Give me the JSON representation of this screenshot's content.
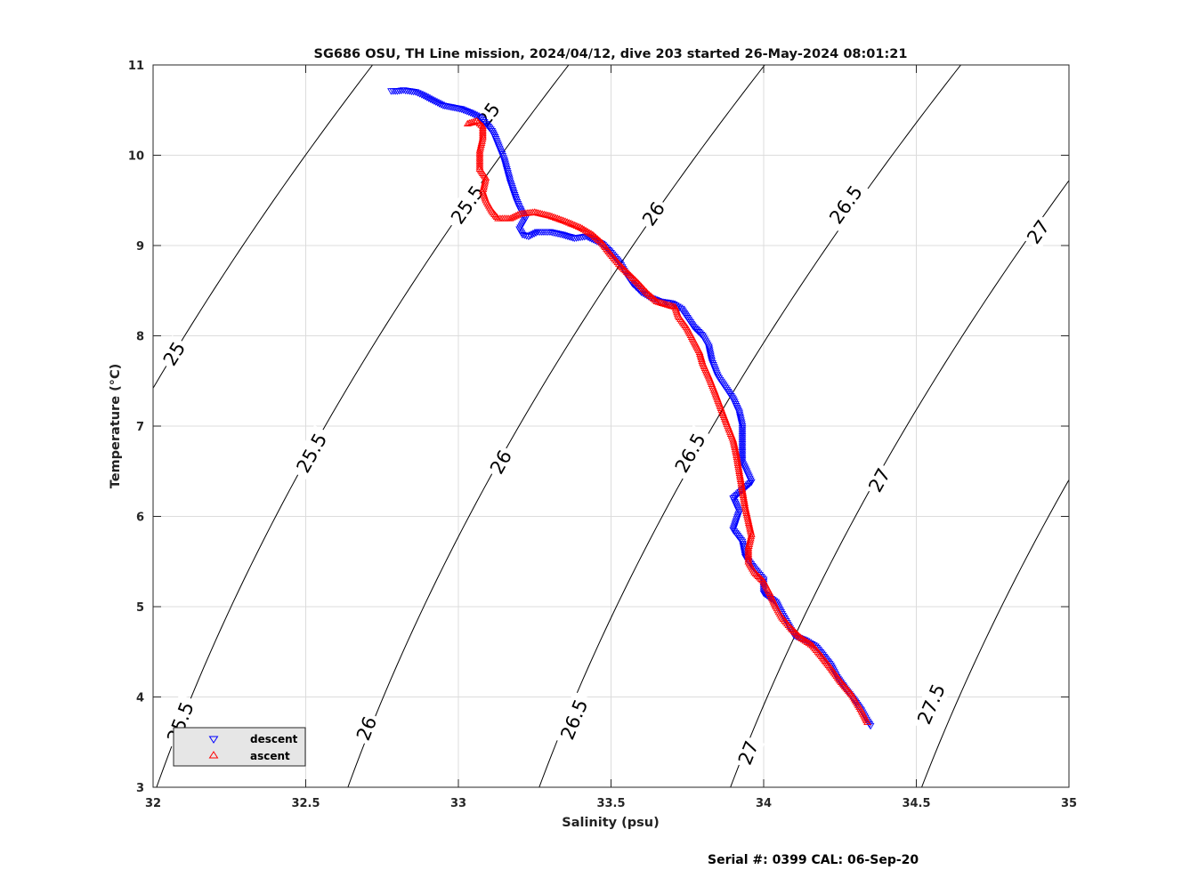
{
  "chart_data": {
    "type": "scatter",
    "title": "SG686 OSU, TH Line mission, 2024/04/12, dive 203 started 26-May-2024 08:01:21",
    "xlabel": "Salinity (psu)",
    "ylabel": "Temperature (°C)",
    "xlim": [
      32,
      35
    ],
    "ylim": [
      3,
      11
    ],
    "xticks": [
      "32",
      "32.5",
      "33",
      "33.5",
      "34",
      "34.5",
      "35"
    ],
    "yticks": [
      "3",
      "4",
      "5",
      "6",
      "7",
      "8",
      "9",
      "10",
      "11"
    ],
    "grid": true,
    "legend_position": "bottom-left",
    "density_contours": {
      "levels": [
        25,
        25.5,
        26,
        26.5,
        27,
        27.5
      ],
      "labels": [
        {
          "text": "25",
          "s": 33.1,
          "t": 10.45
        },
        {
          "text": "25",
          "s": 32.07,
          "t": 7.8
        },
        {
          "text": "25.5",
          "s": 33.03,
          "t": 9.45
        },
        {
          "text": "25.5",
          "s": 32.52,
          "t": 6.7
        },
        {
          "text": "25.5",
          "s": 32.09,
          "t": 3.72
        },
        {
          "text": "26",
          "s": 33.64,
          "t": 9.35
        },
        {
          "text": "26",
          "s": 33.14,
          "t": 6.6
        },
        {
          "text": "26",
          "s": 32.7,
          "t": 3.65
        },
        {
          "text": "26.5",
          "s": 34.27,
          "t": 9.45
        },
        {
          "text": "26.5",
          "s": 33.76,
          "t": 6.7
        },
        {
          "text": "26.5",
          "s": 33.38,
          "t": 3.75
        },
        {
          "text": "27",
          "s": 34.9,
          "t": 9.15
        },
        {
          "text": "27",
          "s": 34.38,
          "t": 6.4
        },
        {
          "text": "27",
          "s": 33.95,
          "t": 3.38
        },
        {
          "text": "27.5",
          "s": 34.55,
          "t": 3.92
        }
      ]
    },
    "series": [
      {
        "name": "descent",
        "marker": "triangle-down",
        "color": "#0000ff",
        "points": [
          [
            32.78,
            10.71
          ],
          [
            32.8,
            10.71
          ],
          [
            32.82,
            10.72
          ],
          [
            32.84,
            10.71
          ],
          [
            32.86,
            10.7
          ],
          [
            32.88,
            10.67
          ],
          [
            32.92,
            10.6
          ],
          [
            32.95,
            10.55
          ],
          [
            32.98,
            10.53
          ],
          [
            33.01,
            10.51
          ],
          [
            33.04,
            10.47
          ],
          [
            33.07,
            10.42
          ],
          [
            33.09,
            10.35
          ],
          [
            33.11,
            10.27
          ],
          [
            33.12,
            10.2
          ],
          [
            33.15,
            9.95
          ],
          [
            33.17,
            9.7
          ],
          [
            33.18,
            9.6
          ],
          [
            33.19,
            9.5
          ],
          [
            33.2,
            9.42
          ],
          [
            33.21,
            9.35
          ],
          [
            33.22,
            9.3
          ],
          [
            33.2,
            9.18
          ],
          [
            33.21,
            9.12
          ],
          [
            33.23,
            9.1
          ],
          [
            33.26,
            9.15
          ],
          [
            33.3,
            9.15
          ],
          [
            33.34,
            9.12
          ],
          [
            33.38,
            9.08
          ],
          [
            33.42,
            9.1
          ],
          [
            33.47,
            9.02
          ],
          [
            33.5,
            8.92
          ],
          [
            33.53,
            8.8
          ],
          [
            33.55,
            8.68
          ],
          [
            33.57,
            8.58
          ],
          [
            33.6,
            8.48
          ],
          [
            33.63,
            8.42
          ],
          [
            33.66,
            8.38
          ],
          [
            33.7,
            8.36
          ],
          [
            33.73,
            8.3
          ],
          [
            33.75,
            8.2
          ],
          [
            33.77,
            8.1
          ],
          [
            33.8,
            8.0
          ],
          [
            33.82,
            7.88
          ],
          [
            33.83,
            7.72
          ],
          [
            33.85,
            7.55
          ],
          [
            33.88,
            7.4
          ],
          [
            33.9,
            7.3
          ],
          [
            33.92,
            7.15
          ],
          [
            33.93,
            7.0
          ],
          [
            33.93,
            6.8
          ],
          [
            33.93,
            6.6
          ],
          [
            33.96,
            6.38
          ],
          [
            33.9,
            6.2
          ],
          [
            33.92,
            6.05
          ],
          [
            33.9,
            5.85
          ],
          [
            33.93,
            5.72
          ],
          [
            33.94,
            5.55
          ],
          [
            33.97,
            5.42
          ],
          [
            34.0,
            5.3
          ],
          [
            34.0,
            5.15
          ],
          [
            34.04,
            5.05
          ],
          [
            34.06,
            4.92
          ],
          [
            34.08,
            4.8
          ],
          [
            34.1,
            4.68
          ],
          [
            34.14,
            4.62
          ],
          [
            34.17,
            4.56
          ],
          [
            34.19,
            4.48
          ],
          [
            34.22,
            4.35
          ],
          [
            34.24,
            4.22
          ],
          [
            34.27,
            4.08
          ],
          [
            34.3,
            3.95
          ],
          [
            34.32,
            3.85
          ],
          [
            34.34,
            3.73
          ],
          [
            34.35,
            3.68
          ]
        ]
      },
      {
        "name": "ascent",
        "marker": "triangle-up",
        "color": "#ff0000",
        "points": [
          [
            33.03,
            10.35
          ],
          [
            33.06,
            10.38
          ],
          [
            33.08,
            10.32
          ],
          [
            33.08,
            10.2
          ],
          [
            33.07,
            10.05
          ],
          [
            33.07,
            9.85
          ],
          [
            33.09,
            9.75
          ],
          [
            33.08,
            9.6
          ],
          [
            33.09,
            9.5
          ],
          [
            33.11,
            9.38
          ],
          [
            33.13,
            9.3
          ],
          [
            33.17,
            9.3
          ],
          [
            33.2,
            9.35
          ],
          [
            33.25,
            9.37
          ],
          [
            33.3,
            9.33
          ],
          [
            33.35,
            9.27
          ],
          [
            33.4,
            9.2
          ],
          [
            33.44,
            9.12
          ],
          [
            33.47,
            9.03
          ],
          [
            33.5,
            8.9
          ],
          [
            33.53,
            8.78
          ],
          [
            33.56,
            8.68
          ],
          [
            33.59,
            8.58
          ],
          [
            33.62,
            8.47
          ],
          [
            33.65,
            8.38
          ],
          [
            33.68,
            8.35
          ],
          [
            33.71,
            8.32
          ],
          [
            33.72,
            8.22
          ],
          [
            33.75,
            8.08
          ],
          [
            33.77,
            7.95
          ],
          [
            33.79,
            7.82
          ],
          [
            33.8,
            7.7
          ],
          [
            33.82,
            7.55
          ],
          [
            33.84,
            7.38
          ],
          [
            33.86,
            7.2
          ],
          [
            33.88,
            7.02
          ],
          [
            33.9,
            6.85
          ],
          [
            33.91,
            6.7
          ],
          [
            33.92,
            6.5
          ],
          [
            33.93,
            6.3
          ],
          [
            33.94,
            6.1
          ],
          [
            33.95,
            5.95
          ],
          [
            33.96,
            5.8
          ],
          [
            33.95,
            5.65
          ],
          [
            33.95,
            5.5
          ],
          [
            33.97,
            5.38
          ],
          [
            34.0,
            5.28
          ],
          [
            34.02,
            5.15
          ],
          [
            34.04,
            5.0
          ],
          [
            34.06,
            4.88
          ],
          [
            34.09,
            4.76
          ],
          [
            34.12,
            4.66
          ],
          [
            34.16,
            4.57
          ],
          [
            34.19,
            4.45
          ],
          [
            34.22,
            4.32
          ],
          [
            34.25,
            4.18
          ],
          [
            34.29,
            4.02
          ],
          [
            34.32,
            3.85
          ],
          [
            34.34,
            3.72
          ]
        ]
      }
    ]
  },
  "footer": {
    "serial_text": "Serial #: 0399  CAL: 06-Sep-20"
  }
}
